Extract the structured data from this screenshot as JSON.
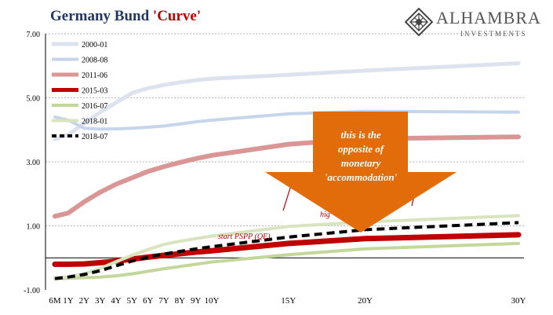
{
  "header": {
    "title_main": "Germany Bund ",
    "title_accent": "'Curve'",
    "brand_name": "ALHAMBRA",
    "brand_sub": "INVESTMENTS"
  },
  "colors": {
    "title": "#1f3864",
    "title_accent": "#c00000",
    "arrow": "#e36c0a",
    "annotation": "#c00000"
  },
  "chart_data": {
    "type": "line",
    "x_scale": "maturity",
    "x_ticks": [
      "6M",
      "1Y",
      "2Y",
      "3Y",
      "4Y",
      "5Y",
      "6Y",
      "7Y",
      "8Y",
      "9Y",
      "10Y",
      "15Y",
      "20Y",
      "30Y"
    ],
    "ylim": [
      -1.0,
      7.0
    ],
    "y_ticks": [
      "-1.00",
      "1.00",
      "3.00",
      "5.00",
      "7.00"
    ],
    "grid": true,
    "legend_position": "top-left",
    "series": [
      {
        "name": "2000-01",
        "color": "#dde3ee",
        "style": "solid",
        "width": 5,
        "points": [
          [
            0.5,
            3.7
          ],
          [
            1,
            3.85
          ],
          [
            2,
            4.2
          ],
          [
            3,
            4.55
          ],
          [
            4,
            4.85
          ],
          [
            5,
            5.15
          ],
          [
            6,
            5.3
          ],
          [
            7,
            5.4
          ],
          [
            8,
            5.48
          ],
          [
            9,
            5.55
          ],
          [
            10,
            5.6
          ],
          [
            15,
            5.72
          ],
          [
            20,
            5.85
          ],
          [
            30,
            6.08
          ]
        ]
      },
      {
        "name": "2008-08",
        "color": "#c5d5ec",
        "style": "solid",
        "width": 4,
        "points": [
          [
            0.5,
            4.4
          ],
          [
            1,
            4.3
          ],
          [
            2,
            4.05
          ],
          [
            3,
            4.02
          ],
          [
            4,
            4.03
          ],
          [
            5,
            4.05
          ],
          [
            6,
            4.08
          ],
          [
            7,
            4.12
          ],
          [
            8,
            4.18
          ],
          [
            9,
            4.25
          ],
          [
            10,
            4.3
          ],
          [
            15,
            4.5
          ],
          [
            20,
            4.58
          ],
          [
            30,
            4.55
          ]
        ]
      },
      {
        "name": "2011-06",
        "color": "#d99694",
        "style": "solid",
        "width": 6,
        "points": [
          [
            0.5,
            1.3
          ],
          [
            1,
            1.4
          ],
          [
            2,
            1.75
          ],
          [
            3,
            2.05
          ],
          [
            4,
            2.3
          ],
          [
            5,
            2.5
          ],
          [
            6,
            2.7
          ],
          [
            7,
            2.85
          ],
          [
            8,
            2.98
          ],
          [
            9,
            3.1
          ],
          [
            10,
            3.2
          ],
          [
            15,
            3.55
          ],
          [
            20,
            3.72
          ],
          [
            30,
            3.78
          ]
        ]
      },
      {
        "name": "2015-03",
        "color": "#c00000",
        "style": "solid",
        "width": 7,
        "points": [
          [
            0.5,
            -0.2
          ],
          [
            1,
            -0.2
          ],
          [
            2,
            -0.19
          ],
          [
            3,
            -0.15
          ],
          [
            4,
            -0.1
          ],
          [
            5,
            -0.04
          ],
          [
            6,
            0.02
          ],
          [
            7,
            0.08
          ],
          [
            8,
            0.13
          ],
          [
            9,
            0.18
          ],
          [
            10,
            0.22
          ],
          [
            15,
            0.45
          ],
          [
            20,
            0.6
          ],
          [
            30,
            0.72
          ]
        ]
      },
      {
        "name": "2016-07",
        "color": "#c4d79b",
        "style": "solid",
        "width": 4,
        "points": [
          [
            0.5,
            -0.65
          ],
          [
            1,
            -0.64
          ],
          [
            2,
            -0.62
          ],
          [
            3,
            -0.6
          ],
          [
            4,
            -0.56
          ],
          [
            5,
            -0.5
          ],
          [
            6,
            -0.42
          ],
          [
            7,
            -0.34
          ],
          [
            8,
            -0.27
          ],
          [
            9,
            -0.2
          ],
          [
            10,
            -0.13
          ],
          [
            15,
            0.1
          ],
          [
            20,
            0.28
          ],
          [
            30,
            0.45
          ]
        ]
      },
      {
        "name": "2018-01",
        "color": "#d7e4bd",
        "style": "solid",
        "width": 4,
        "points": [
          [
            0.5,
            -0.62
          ],
          [
            1,
            -0.6
          ],
          [
            2,
            -0.5
          ],
          [
            3,
            -0.33
          ],
          [
            4,
            -0.12
          ],
          [
            5,
            0.08
          ],
          [
            6,
            0.26
          ],
          [
            7,
            0.42
          ],
          [
            8,
            0.52
          ],
          [
            9,
            0.6
          ],
          [
            10,
            0.68
          ],
          [
            15,
            0.98
          ],
          [
            20,
            1.12
          ],
          [
            30,
            1.32
          ]
        ]
      },
      {
        "name": "2018-07",
        "color": "#000000",
        "style": "dashed",
        "width": 4,
        "points": [
          [
            0.5,
            -0.65
          ],
          [
            1,
            -0.6
          ],
          [
            2,
            -0.52
          ],
          [
            3,
            -0.4
          ],
          [
            4,
            -0.25
          ],
          [
            5,
            -0.1
          ],
          [
            6,
            0.02
          ],
          [
            7,
            0.12
          ],
          [
            8,
            0.2
          ],
          [
            9,
            0.28
          ],
          [
            10,
            0.35
          ],
          [
            15,
            0.65
          ],
          [
            20,
            0.88
          ],
          [
            30,
            1.1
          ]
        ]
      }
    ],
    "annotations": {
      "arrow_text": [
        "this is the",
        "opposite of",
        "monetary",
        "'accommodation'"
      ],
      "start_pspp_label": "start PSPP (QE)",
      "higher_label_partial": "hig"
    }
  }
}
